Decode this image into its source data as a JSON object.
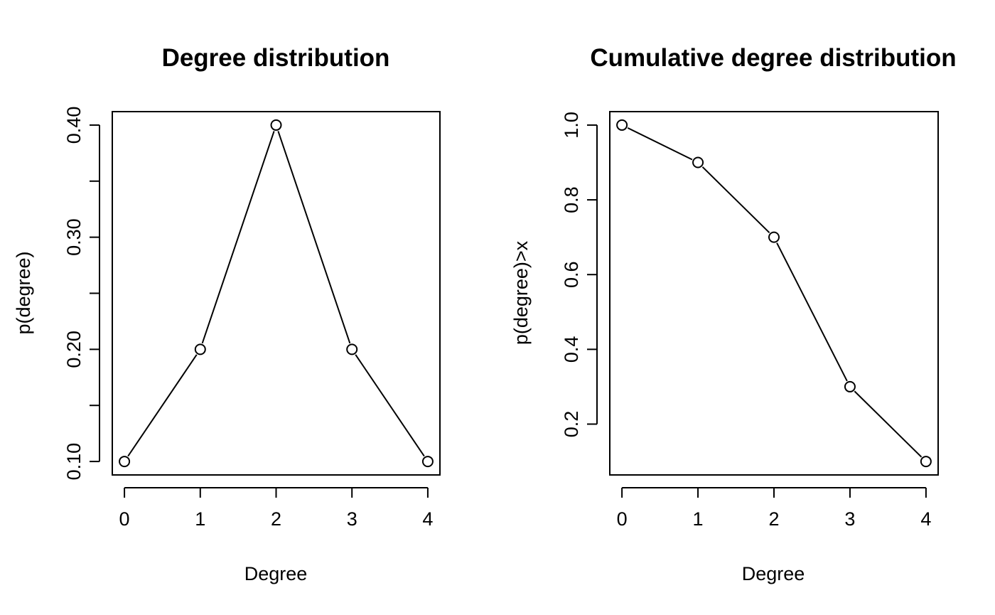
{
  "chart_data": [
    {
      "type": "line",
      "markers": "open-circle",
      "title": "Degree distribution",
      "xlabel": "Degree",
      "ylabel": "p(degree)",
      "x": [
        0,
        1,
        2,
        3,
        4
      ],
      "y": [
        0.1,
        0.2,
        0.4,
        0.2,
        0.1
      ],
      "xlim": [
        -0.16,
        4.16
      ],
      "ylim": [
        0.088,
        0.412
      ],
      "xticks": [
        0,
        1,
        2,
        3,
        4
      ],
      "xtick_labels": [
        "0",
        "1",
        "2",
        "3",
        "4"
      ],
      "yticks": [
        0.1,
        0.15,
        0.2,
        0.25,
        0.3,
        0.35,
        0.4
      ],
      "ytick_labels": [
        "0.10",
        "",
        "0.20",
        "",
        "0.30",
        "",
        "0.40"
      ],
      "grid": false,
      "legend": "none",
      "line_color": "#000000"
    },
    {
      "type": "line",
      "markers": "open-circle",
      "title": "Cumulative degree distribution",
      "xlabel": "Degree",
      "ylabel": "p(degree)>x",
      "x": [
        0,
        1,
        2,
        3,
        4
      ],
      "y": [
        1.0,
        0.9,
        0.7,
        0.3,
        0.1
      ],
      "xlim": [
        -0.16,
        4.16
      ],
      "ylim": [
        0.064,
        1.036
      ],
      "xticks": [
        0,
        1,
        2,
        3,
        4
      ],
      "xtick_labels": [
        "0",
        "1",
        "2",
        "3",
        "4"
      ],
      "yticks": [
        0.2,
        0.4,
        0.6,
        0.8,
        1.0
      ],
      "ytick_labels": [
        "0.2",
        "0.4",
        "0.6",
        "0.8",
        "1.0"
      ],
      "grid": false,
      "legend": "none",
      "line_color": "#000000"
    }
  ]
}
